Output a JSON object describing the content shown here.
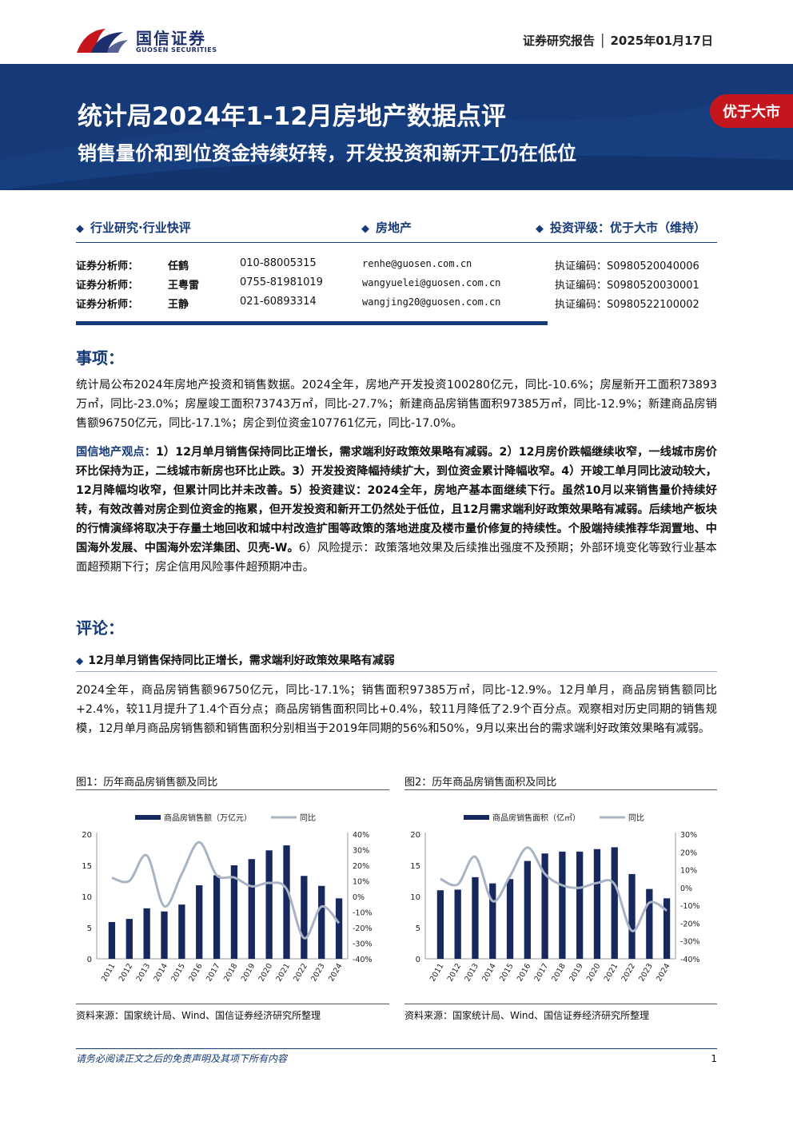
{
  "header": {
    "brand_cn": "国信证券",
    "brand_en": "GUOSEN SECURITIES",
    "doc_type": "证券研究报告 │ 2025年01月17日",
    "title": "统计局2024年1-12月房地产数据点评",
    "subtitle": "销售量价和到位资金持续好转，开发投资和新开工仍在低位",
    "rating_badge": "优于大市",
    "banner_color": "#163a78",
    "badge_color": "#c6161d"
  },
  "meta": {
    "category": "行业研究·行业快评",
    "industry": "房地产",
    "rating": "投资评级：优于大市（维持）",
    "analysts": [
      {
        "label": "证券分析师：",
        "name": "任鹤",
        "phone": "010-88005315",
        "email": "renhe@guosen.com.cn",
        "license": "执证编码：S0980520040006"
      },
      {
        "label": "证券分析师：",
        "name": "王粤雷",
        "phone": "0755-81981019",
        "email": "wangyuelei@guosen.com.cn",
        "license": "执证编码：S0980520030001"
      },
      {
        "label": "证券分析师：",
        "name": "王静",
        "phone": "021-60893314",
        "email": "wangjing20@guosen.com.cn",
        "license": "执证编码：S0980522100002"
      }
    ]
  },
  "section1": {
    "heading": "事项：",
    "para": "统计局公布2024年房地产投资和销售数据。2024全年，房地产开发投资100280亿元，同比-10.6%；房屋新开工面积73893万㎡，同比-23.0%；房屋竣工面积73743万㎡，同比-27.7%；新建商品房销售面积97385万㎡，同比-12.9%；新建商品房销售额96750亿元，同比-17.1%；房企到位资金107761亿元，同比-17.0%。",
    "view_label": "国信地产观点：",
    "view_text": "1）12月单月销售保持同比正增长，需求端利好政策效果略有减弱。2）12月房价跌幅继续收窄，一线城市房价环比保持为正，二线城市新房也环比止跌。3）开发投资降幅持续扩大，到位资金累计降幅收窄。4）开竣工单月同比波动较大，12月降幅均收窄，但累计同比并未改善。5）投资建议：2024全年，房地产基本面继续下行。虽然10月以来销售量价持续好转，有效改善对房企到位资金的拖累，但开发投资和新开工仍然处于低位，且12月需求端利好政策效果略有减弱。后续地产板块的行情演绎将取决于存量土地回收和城中村改造扩围等政策的落地进度及楼市量价修复的持续性。个股端持续推荐华润置地、中国海外发展、中国海外宏洋集团、贝壳-W。",
    "risk_text": "6）风险提示：政策落地效果及后续推出强度不及预期；外部环境变化等致行业基本面超预期下行；房企信用风险事件超预期冲击。"
  },
  "section2": {
    "heading": "评论：",
    "sub_heading": "12月单月销售保持同比正增长，需求端利好政策效果略有减弱",
    "para": "2024全年，商品房销售额96750亿元，同比-17.1%；销售面积97385万㎡，同比-12.9%。12月单月，商品房销售额同比+2.4%，较11月提升了1.4个百分点；商品房销售面积同比+0.4%，较11月降低了2.9个百分点。观察相对历史同期的销售规模，12月单月商品房销售额和销售面积分别相当于2019年同期的56%和50%，9月以来出台的需求端利好政策效果略有减弱。"
  },
  "figures": [
    {
      "title": "图1：历年商品房销售额及同比",
      "source": "资料来源：国家统计局、Wind、国信证券经济研究所整理"
    },
    {
      "title": "图2：历年商品房销售面积及同比",
      "source": "资料来源：国家统计局、Wind、国信证券经济研究所整理"
    }
  ],
  "chart_data": [
    {
      "type": "bar",
      "categories": [
        "2011",
        "2012",
        "2013",
        "2014",
        "2015",
        "2016",
        "2017",
        "2018",
        "2019",
        "2020",
        "2021",
        "2022",
        "2023",
        "2024"
      ],
      "series": [
        {
          "name": "商品房销售额（万亿元）",
          "type": "bar",
          "axis": "left",
          "values": [
            5.9,
            6.4,
            8.1,
            7.6,
            8.7,
            11.8,
            13.4,
            15.0,
            16.0,
            17.4,
            18.2,
            13.3,
            11.7,
            9.7
          ]
        },
        {
          "name": "同比",
          "type": "line",
          "axis": "right",
          "values": [
            12.0,
            10.0,
            26.3,
            -6.3,
            14.4,
            34.8,
            13.7,
            12.2,
            6.5,
            8.7,
            4.8,
            -26.7,
            -6.5,
            -17.1
          ]
        }
      ],
      "ylim_left": [
        0,
        20
      ],
      "yticks_left": [
        "0",
        "5",
        "10",
        "15",
        "20"
      ],
      "ylim_right": [
        -40,
        40
      ],
      "yticks_right": [
        "-40%",
        "-30%",
        "-20%",
        "-10%",
        "0%",
        "10%",
        "20%",
        "30%",
        "40%"
      ],
      "bar_color": "#16285e",
      "line_color": "#a9b3c4"
    },
    {
      "type": "bar",
      "categories": [
        "2011",
        "2012",
        "2013",
        "2014",
        "2015",
        "2016",
        "2017",
        "2018",
        "2019",
        "2020",
        "2021",
        "2022",
        "2023",
        "2024"
      ],
      "series": [
        {
          "name": "商品房销售面积（亿㎡）",
          "type": "bar",
          "axis": "left",
          "values": [
            11.0,
            11.1,
            13.1,
            12.1,
            12.8,
            15.7,
            16.9,
            17.2,
            17.2,
            17.6,
            17.9,
            13.6,
            11.2,
            9.7
          ]
        },
        {
          "name": "同比",
          "type": "line",
          "axis": "right",
          "values": [
            4.9,
            1.8,
            17.3,
            -7.6,
            6.5,
            22.5,
            7.7,
            1.3,
            -0.1,
            2.6,
            1.9,
            -24.3,
            -8.5,
            -12.9
          ]
        }
      ],
      "ylim_left": [
        0,
        20
      ],
      "yticks_left": [
        "0",
        "5",
        "10",
        "15",
        "20"
      ],
      "ylim_right": [
        -40,
        30
      ],
      "yticks_right": [
        "-40%",
        "-30%",
        "-20%",
        "-10%",
        "0%",
        "10%",
        "20%",
        "30%"
      ],
      "bar_color": "#16285e",
      "line_color": "#a9b3c4"
    }
  ],
  "footer": {
    "disclaimer": "请务必阅读正文之后的免责声明及其项下所有内容",
    "page": "1"
  }
}
